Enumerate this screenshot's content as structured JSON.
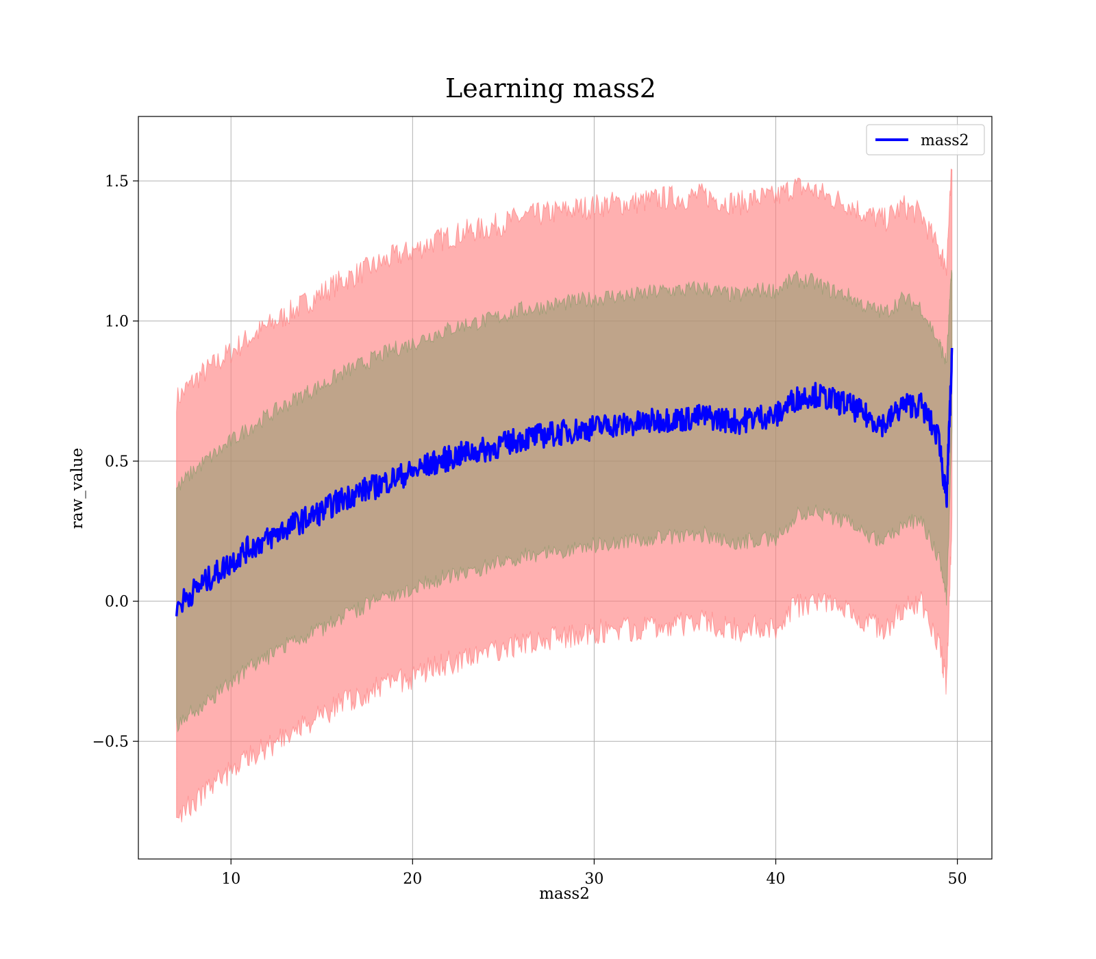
{
  "chart_data": {
    "type": "line",
    "title": "Learning mass2",
    "xlabel": "mass2",
    "ylabel": "raw_value",
    "xlim": [
      4.9,
      51.9
    ],
    "ylim": [
      -0.92,
      1.73
    ],
    "xticks": [
      10,
      20,
      30,
      40,
      50
    ],
    "yticks": [
      -0.5,
      0.0,
      0.5,
      1.0,
      1.5
    ],
    "xtick_labels": [
      "10",
      "20",
      "30",
      "40",
      "50"
    ],
    "ytick_labels": [
      "−0.5",
      "0.0",
      "0.5",
      "1.0",
      "1.5"
    ],
    "grid": true,
    "legend": {
      "position": "top-right",
      "entries": [
        {
          "label": "mass2",
          "color": "#0000ff"
        }
      ]
    },
    "series": [
      {
        "name": "mass2",
        "color": "#0000ff",
        "x": [
          7.0,
          8.0,
          9.0,
          10.0,
          11.0,
          12.0,
          13.0,
          14.0,
          15.0,
          16.0,
          17.0,
          18.0,
          19.0,
          20.0,
          21.0,
          22.0,
          23.0,
          24.0,
          25.0,
          26.0,
          27.0,
          28.0,
          29.0,
          30.0,
          31.0,
          32.0,
          33.0,
          34.0,
          35.0,
          36.0,
          37.0,
          38.0,
          39.0,
          40.0,
          41.0,
          42.0,
          43.0,
          44.0,
          45.0,
          46.0,
          47.0,
          48.0,
          49.0,
          49.4,
          49.7
        ],
        "y": [
          -0.02,
          0.04,
          0.09,
          0.14,
          0.19,
          0.22,
          0.26,
          0.29,
          0.32,
          0.36,
          0.39,
          0.41,
          0.44,
          0.46,
          0.49,
          0.51,
          0.53,
          0.54,
          0.56,
          0.58,
          0.59,
          0.6,
          0.61,
          0.62,
          0.63,
          0.63,
          0.64,
          0.65,
          0.65,
          0.66,
          0.65,
          0.64,
          0.66,
          0.66,
          0.72,
          0.74,
          0.72,
          0.7,
          0.66,
          0.63,
          0.7,
          0.7,
          0.58,
          0.35,
          0.87
        ]
      }
    ],
    "bands": [
      {
        "label": "outer",
        "color": "#ff7f7f",
        "x": [
          7.0,
          8.0,
          9.0,
          10.0,
          11.0,
          12.0,
          13.0,
          14.0,
          15.0,
          16.0,
          17.0,
          18.0,
          19.0,
          20.0,
          21.0,
          22.0,
          23.0,
          24.0,
          25.0,
          26.0,
          27.0,
          28.0,
          29.0,
          30.0,
          31.0,
          32.0,
          33.0,
          34.0,
          35.0,
          36.0,
          37.0,
          38.0,
          39.0,
          40.0,
          41.0,
          42.0,
          43.0,
          44.0,
          45.0,
          46.0,
          47.0,
          48.0,
          49.0,
          49.4,
          49.7
        ],
        "upper": [
          0.72,
          0.79,
          0.84,
          0.89,
          0.94,
          0.98,
          1.02,
          1.06,
          1.1,
          1.14,
          1.17,
          1.2,
          1.23,
          1.25,
          1.28,
          1.3,
          1.32,
          1.33,
          1.35,
          1.37,
          1.38,
          1.39,
          1.4,
          1.41,
          1.42,
          1.42,
          1.43,
          1.44,
          1.44,
          1.45,
          1.43,
          1.42,
          1.44,
          1.44,
          1.48,
          1.47,
          1.44,
          1.42,
          1.38,
          1.36,
          1.41,
          1.38,
          1.25,
          1.2,
          1.55
        ],
        "lower": [
          -0.76,
          -0.71,
          -0.66,
          -0.61,
          -0.56,
          -0.52,
          -0.48,
          -0.44,
          -0.41,
          -0.37,
          -0.34,
          -0.31,
          -0.29,
          -0.27,
          -0.24,
          -0.22,
          -0.2,
          -0.19,
          -0.17,
          -0.15,
          -0.14,
          -0.13,
          -0.12,
          -0.11,
          -0.1,
          -0.1,
          -0.09,
          -0.08,
          -0.08,
          -0.07,
          -0.09,
          -0.1,
          -0.09,
          -0.09,
          -0.02,
          0.0,
          -0.02,
          -0.03,
          -0.07,
          -0.1,
          -0.03,
          -0.01,
          -0.15,
          -0.3,
          0.3
        ]
      },
      {
        "label": "inner",
        "color": "#8b9a6b",
        "x": [
          7.0,
          8.0,
          9.0,
          10.0,
          11.0,
          12.0,
          13.0,
          14.0,
          15.0,
          16.0,
          17.0,
          18.0,
          19.0,
          20.0,
          21.0,
          22.0,
          23.0,
          24.0,
          25.0,
          26.0,
          27.0,
          28.0,
          29.0,
          30.0,
          31.0,
          32.0,
          33.0,
          34.0,
          35.0,
          36.0,
          37.0,
          38.0,
          39.0,
          40.0,
          41.0,
          42.0,
          43.0,
          44.0,
          45.0,
          46.0,
          47.0,
          48.0,
          49.0,
          49.4,
          49.7
        ],
        "upper": [
          0.4,
          0.47,
          0.52,
          0.57,
          0.62,
          0.66,
          0.7,
          0.74,
          0.77,
          0.81,
          0.84,
          0.87,
          0.9,
          0.92,
          0.95,
          0.97,
          0.99,
          1.0,
          1.02,
          1.04,
          1.05,
          1.06,
          1.07,
          1.08,
          1.09,
          1.09,
          1.1,
          1.11,
          1.11,
          1.12,
          1.1,
          1.09,
          1.11,
          1.11,
          1.15,
          1.14,
          1.11,
          1.09,
          1.05,
          1.03,
          1.08,
          1.05,
          0.92,
          0.85,
          1.2
        ],
        "lower": [
          -0.44,
          -0.39,
          -0.34,
          -0.29,
          -0.24,
          -0.2,
          -0.16,
          -0.13,
          -0.1,
          -0.06,
          -0.03,
          0.0,
          0.02,
          0.04,
          0.07,
          0.09,
          0.11,
          0.12,
          0.14,
          0.16,
          0.17,
          0.18,
          0.19,
          0.2,
          0.21,
          0.21,
          0.22,
          0.23,
          0.23,
          0.24,
          0.22,
          0.21,
          0.22,
          0.22,
          0.3,
          0.33,
          0.3,
          0.28,
          0.24,
          0.21,
          0.28,
          0.29,
          0.15,
          0.0,
          0.6
        ]
      }
    ]
  }
}
